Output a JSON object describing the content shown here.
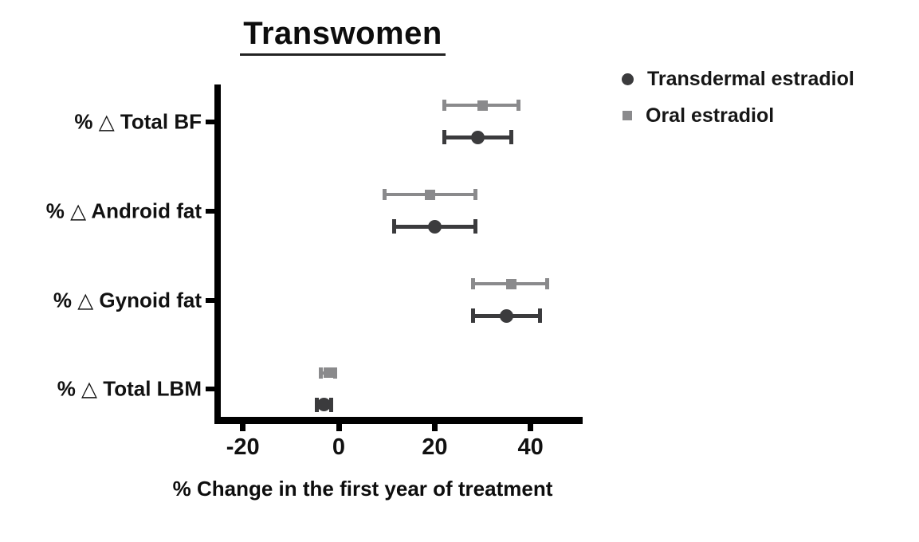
{
  "title": "Transwomen",
  "xlabel": "% Change in the first year of treatment",
  "colors": {
    "transdermal": "#3b3b3d",
    "oral": "#8a8a8c",
    "axis": "#000000",
    "text": "#111111"
  },
  "chart_data": {
    "type": "scatter",
    "subtype": "forest-plot-horizontal",
    "title": "Transwomen",
    "xlabel": "% Change in the first year of treatment",
    "categories": [
      "% △ Total BF",
      "% △ Android fat",
      "% △ Gynoid fat",
      "% △ Total LBM"
    ],
    "x_ticks": [
      -20,
      0,
      20,
      40
    ],
    "xlim": [
      -25.5,
      50.5
    ],
    "grid": false,
    "legend_position": "top-right",
    "series": [
      {
        "name": "Transdermal estradiol",
        "marker": "circle",
        "color": "#3b3b3d",
        "values": [
          29,
          20,
          35,
          -3
        ],
        "ci_low": [
          22,
          11.5,
          28,
          -4.5
        ],
        "ci_high": [
          36,
          28.5,
          42,
          -1.5
        ]
      },
      {
        "name": "Oral estradiol",
        "marker": "square",
        "color": "#8a8a8c",
        "values": [
          30,
          19,
          36,
          -2
        ],
        "ci_low": [
          22,
          9.5,
          28,
          -3.7
        ],
        "ci_high": [
          37.5,
          28.5,
          43.5,
          -0.7
        ]
      }
    ]
  }
}
